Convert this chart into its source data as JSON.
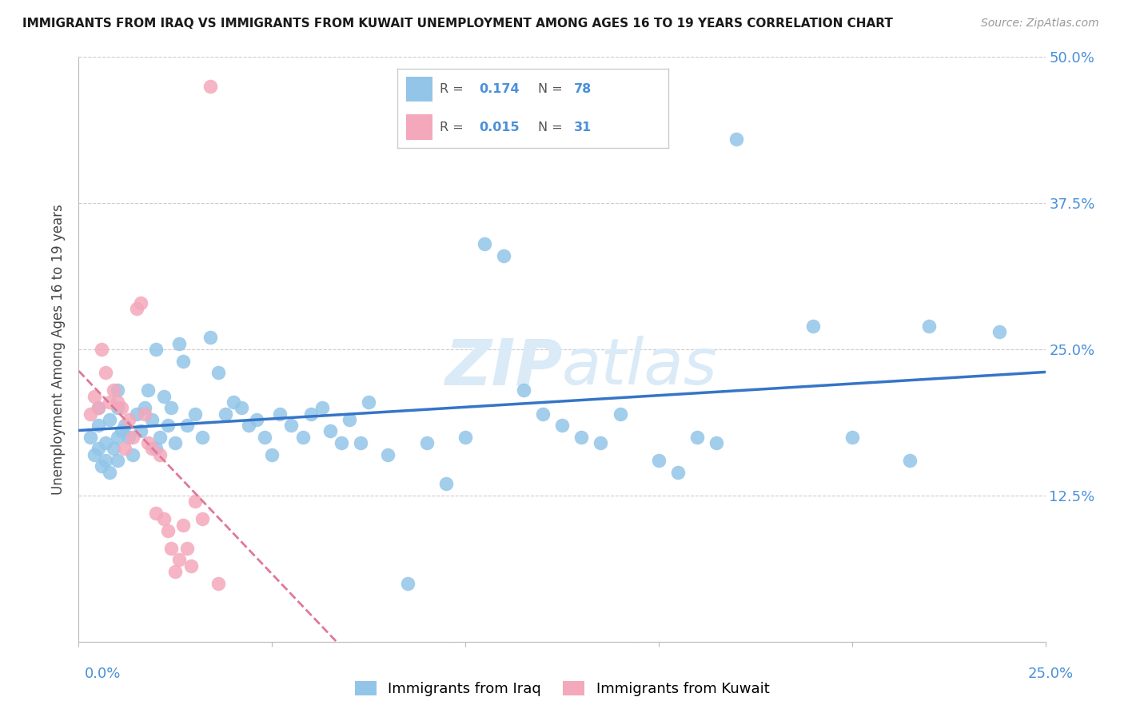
{
  "title": "IMMIGRANTS FROM IRAQ VS IMMIGRANTS FROM KUWAIT UNEMPLOYMENT AMONG AGES 16 TO 19 YEARS CORRELATION CHART",
  "source": "Source: ZipAtlas.com",
  "ylabel": "Unemployment Among Ages 16 to 19 years",
  "y_ticks": [
    0.0,
    0.125,
    0.25,
    0.375,
    0.5
  ],
  "y_tick_labels": [
    "",
    "12.5%",
    "25.0%",
    "37.5%",
    "50.0%"
  ],
  "x_range": [
    0.0,
    0.25
  ],
  "y_range": [
    0.0,
    0.5
  ],
  "iraq_R": 0.174,
  "iraq_N": 78,
  "kuwait_R": 0.015,
  "kuwait_N": 31,
  "iraq_color": "#92c5e8",
  "kuwait_color": "#f4a8bb",
  "iraq_line_color": "#3575c8",
  "kuwait_line_color": "#e07898",
  "watermark_color": "#daeaf7",
  "iraq_scatter_x": [
    0.003,
    0.004,
    0.005,
    0.005,
    0.005,
    0.006,
    0.007,
    0.007,
    0.008,
    0.008,
    0.009,
    0.01,
    0.01,
    0.01,
    0.01,
    0.011,
    0.012,
    0.013,
    0.014,
    0.015,
    0.016,
    0.017,
    0.018,
    0.019,
    0.02,
    0.02,
    0.021,
    0.022,
    0.023,
    0.024,
    0.025,
    0.026,
    0.027,
    0.028,
    0.03,
    0.032,
    0.034,
    0.036,
    0.038,
    0.04,
    0.042,
    0.044,
    0.046,
    0.048,
    0.05,
    0.052,
    0.055,
    0.058,
    0.06,
    0.063,
    0.065,
    0.068,
    0.07,
    0.073,
    0.075,
    0.08,
    0.085,
    0.09,
    0.095,
    0.1,
    0.105,
    0.11,
    0.115,
    0.12,
    0.125,
    0.13,
    0.135,
    0.14,
    0.15,
    0.155,
    0.16,
    0.165,
    0.17,
    0.19,
    0.2,
    0.215,
    0.22,
    0.238
  ],
  "iraq_scatter_y": [
    0.175,
    0.16,
    0.185,
    0.2,
    0.165,
    0.15,
    0.17,
    0.155,
    0.145,
    0.19,
    0.165,
    0.175,
    0.155,
    0.2,
    0.215,
    0.18,
    0.185,
    0.175,
    0.16,
    0.195,
    0.18,
    0.2,
    0.215,
    0.19,
    0.165,
    0.25,
    0.175,
    0.21,
    0.185,
    0.2,
    0.17,
    0.255,
    0.24,
    0.185,
    0.195,
    0.175,
    0.26,
    0.23,
    0.195,
    0.205,
    0.2,
    0.185,
    0.19,
    0.175,
    0.16,
    0.195,
    0.185,
    0.175,
    0.195,
    0.2,
    0.18,
    0.17,
    0.19,
    0.17,
    0.205,
    0.16,
    0.05,
    0.17,
    0.135,
    0.175,
    0.34,
    0.33,
    0.215,
    0.195,
    0.185,
    0.175,
    0.17,
    0.195,
    0.155,
    0.145,
    0.175,
    0.17,
    0.43,
    0.27,
    0.175,
    0.155,
    0.27,
    0.265
  ],
  "kuwait_scatter_x": [
    0.003,
    0.004,
    0.005,
    0.006,
    0.007,
    0.008,
    0.009,
    0.01,
    0.011,
    0.012,
    0.013,
    0.014,
    0.015,
    0.016,
    0.017,
    0.018,
    0.019,
    0.02,
    0.021,
    0.022,
    0.023,
    0.024,
    0.025,
    0.026,
    0.027,
    0.028,
    0.029,
    0.03,
    0.032,
    0.034,
    0.036
  ],
  "kuwait_scatter_y": [
    0.195,
    0.21,
    0.2,
    0.25,
    0.23,
    0.205,
    0.215,
    0.205,
    0.2,
    0.165,
    0.19,
    0.175,
    0.285,
    0.29,
    0.195,
    0.17,
    0.165,
    0.11,
    0.16,
    0.105,
    0.095,
    0.08,
    0.06,
    0.07,
    0.1,
    0.08,
    0.065,
    0.12,
    0.105,
    0.475,
    0.05
  ]
}
